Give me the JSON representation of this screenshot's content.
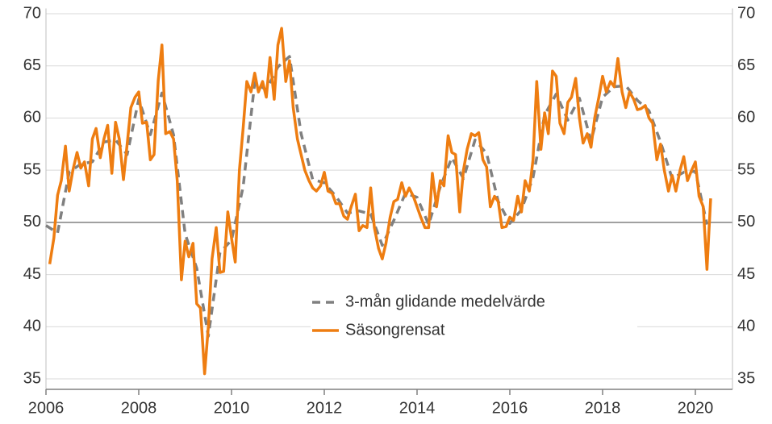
{
  "chart_data": {
    "type": "line",
    "xlim": [
      2006,
      2020.8
    ],
    "xticks": [
      2006,
      2008,
      2010,
      2012,
      2014,
      2016,
      2018,
      2020
    ],
    "ylim": [
      34,
      70.5
    ],
    "yticks": [
      35,
      40,
      45,
      50,
      55,
      60,
      65,
      70
    ],
    "y2lim": [
      34,
      70.5
    ],
    "y2ticks": [
      35,
      40,
      45,
      50,
      55,
      60,
      65,
      70
    ],
    "reference_line": 50,
    "grid": true,
    "legend": "center",
    "series": [
      {
        "name": "3-mån glidande medelvärde",
        "color": "#808080",
        "dashed": true,
        "x": [
          2006,
          2006.25,
          2006.5,
          2006.75,
          2007,
          2007.25,
          2007.5,
          2007.75,
          2008,
          2008.25,
          2008.5,
          2008.75,
          2009,
          2009.25,
          2009.5,
          2009.75,
          2010,
          2010.25,
          2010.5,
          2010.75,
          2011,
          2011.25,
          2011.5,
          2011.75,
          2012,
          2012.25,
          2012.5,
          2012.75,
          2013,
          2013.25,
          2013.5,
          2013.75,
          2014,
          2014.25,
          2014.5,
          2014.75,
          2015,
          2015.25,
          2015.5,
          2015.75,
          2016,
          2016.25,
          2016.5,
          2016.75,
          2017,
          2017.25,
          2017.5,
          2017.75,
          2018,
          2018.25,
          2018.5,
          2018.75,
          2019,
          2019.25,
          2019.5,
          2019.75,
          2020,
          2020.25
        ],
        "values": [
          49.7,
          49.0,
          54.8,
          55.6,
          55.8,
          57.7,
          57.9,
          56.5,
          61.8,
          58.4,
          62.4,
          58.4,
          48.9,
          45.6,
          39.1,
          47.1,
          48.3,
          53.4,
          63.4,
          62.7,
          64.9,
          65.9,
          58.5,
          54.1,
          53.8,
          52.5,
          50.9,
          51.1,
          50.8,
          47.8,
          50.2,
          52.8,
          52.4,
          49.8,
          53.4,
          56.2,
          54.2,
          57.9,
          56.6,
          52,
          49.9,
          51.2,
          54.3,
          60.3,
          62.3,
          59.8,
          61.9,
          57.8,
          62,
          63,
          63.1,
          61.7,
          60.7,
          57.7,
          54.2,
          54.8,
          54.9,
          49.8
        ]
      },
      {
        "name": "Säsongrensat",
        "color": "#ee7d11",
        "dashed": false,
        "x": [
          2006.08,
          2006.17,
          2006.25,
          2006.33,
          2006.42,
          2006.5,
          2006.58,
          2006.67,
          2006.75,
          2006.83,
          2006.92,
          2007,
          2007.08,
          2007.17,
          2007.25,
          2007.33,
          2007.42,
          2007.5,
          2007.58,
          2007.67,
          2007.75,
          2007.83,
          2007.92,
          2008,
          2008.08,
          2008.17,
          2008.25,
          2008.33,
          2008.42,
          2008.5,
          2008.58,
          2008.67,
          2008.75,
          2008.83,
          2008.92,
          2009,
          2009.08,
          2009.17,
          2009.25,
          2009.33,
          2009.42,
          2009.5,
          2009.58,
          2009.67,
          2009.75,
          2009.83,
          2009.92,
          2010,
          2010.08,
          2010.17,
          2010.25,
          2010.33,
          2010.42,
          2010.5,
          2010.58,
          2010.67,
          2010.75,
          2010.83,
          2010.92,
          2011,
          2011.08,
          2011.17,
          2011.25,
          2011.33,
          2011.42,
          2011.5,
          2011.58,
          2011.67,
          2011.75,
          2011.83,
          2011.92,
          2012,
          2012.08,
          2012.17,
          2012.25,
          2012.33,
          2012.42,
          2012.5,
          2012.58,
          2012.67,
          2012.75,
          2012.83,
          2012.92,
          2013,
          2013.08,
          2013.17,
          2013.25,
          2013.33,
          2013.42,
          2013.5,
          2013.58,
          2013.67,
          2013.75,
          2013.83,
          2013.92,
          2014,
          2014.08,
          2014.17,
          2014.25,
          2014.33,
          2014.42,
          2014.5,
          2014.58,
          2014.67,
          2014.75,
          2014.83,
          2014.92,
          2015,
          2015.08,
          2015.17,
          2015.25,
          2015.33,
          2015.42,
          2015.5,
          2015.58,
          2015.67,
          2015.75,
          2015.83,
          2015.92,
          2016,
          2016.08,
          2016.17,
          2016.25,
          2016.33,
          2016.42,
          2016.5,
          2016.58,
          2016.67,
          2016.75,
          2016.83,
          2016.92,
          2017,
          2017.08,
          2017.17,
          2017.25,
          2017.33,
          2017.42,
          2017.5,
          2017.58,
          2017.67,
          2017.75,
          2017.83,
          2017.92,
          2018,
          2018.08,
          2018.17,
          2018.25,
          2018.33,
          2018.42,
          2018.5,
          2018.58,
          2018.67,
          2018.75,
          2018.83,
          2018.92,
          2019,
          2019.08,
          2019.17,
          2019.25,
          2019.33,
          2019.42,
          2019.5,
          2019.58,
          2019.67,
          2019.75,
          2019.83,
          2019.92,
          2020,
          2020.08,
          2020.17,
          2020.25,
          2020.33
        ],
        "values": [
          46,
          48.5,
          52.6,
          54,
          57.3,
          53,
          55,
          56.7,
          55.2,
          55.8,
          53.5,
          58,
          59,
          56.2,
          58,
          59.3,
          54.7,
          59.6,
          58,
          54.1,
          57.5,
          61,
          62,
          62.5,
          59.5,
          59.6,
          56,
          56.5,
          63.6,
          67,
          58.5,
          58.7,
          58,
          54,
          44.5,
          48.2,
          46.7,
          48,
          42.2,
          41.8,
          35.5,
          40,
          46.5,
          49.5,
          45.2,
          45.3,
          51,
          48.5,
          46.2,
          55,
          59,
          63.5,
          62.5,
          64.3,
          62.5,
          63.5,
          62,
          65.8,
          61.8,
          67,
          68.6,
          63.5,
          65.5,
          61,
          58,
          56.5,
          55,
          54,
          53.3,
          53,
          53.5,
          54.8,
          53,
          52.8,
          51.8,
          51.8,
          50.6,
          50.3,
          51.5,
          52.7,
          49.2,
          49.7,
          49.5,
          53.3,
          49.5,
          47.5,
          46.5,
          48,
          50.5,
          52,
          52.2,
          53.8,
          52.5,
          53.3,
          52.5,
          51.5,
          50.5,
          49.5,
          49.5,
          54.7,
          51.5,
          54,
          53.5,
          58.3,
          56.7,
          56.5,
          51,
          55,
          57,
          58.5,
          58.3,
          58.6,
          56,
          55.3,
          51.5,
          52.5,
          52,
          49.5,
          49.6,
          50.5,
          50.2,
          52.5,
          51,
          54,
          53,
          56,
          63.5,
          57,
          60.5,
          58.5,
          64.5,
          64,
          59.5,
          58.5,
          61.5,
          62,
          63.8,
          60,
          57.6,
          58.5,
          57.2,
          60,
          62,
          64,
          62.5,
          63.5,
          63,
          65.7,
          62.5,
          61,
          62.5,
          61.8,
          60.8,
          60.9,
          61.2,
          60,
          59.5,
          56,
          57.5,
          55,
          53,
          54.5,
          53,
          55,
          56.3,
          54,
          55,
          55.8,
          52.5,
          51.5,
          45.5,
          52.3
        ]
      }
    ]
  }
}
